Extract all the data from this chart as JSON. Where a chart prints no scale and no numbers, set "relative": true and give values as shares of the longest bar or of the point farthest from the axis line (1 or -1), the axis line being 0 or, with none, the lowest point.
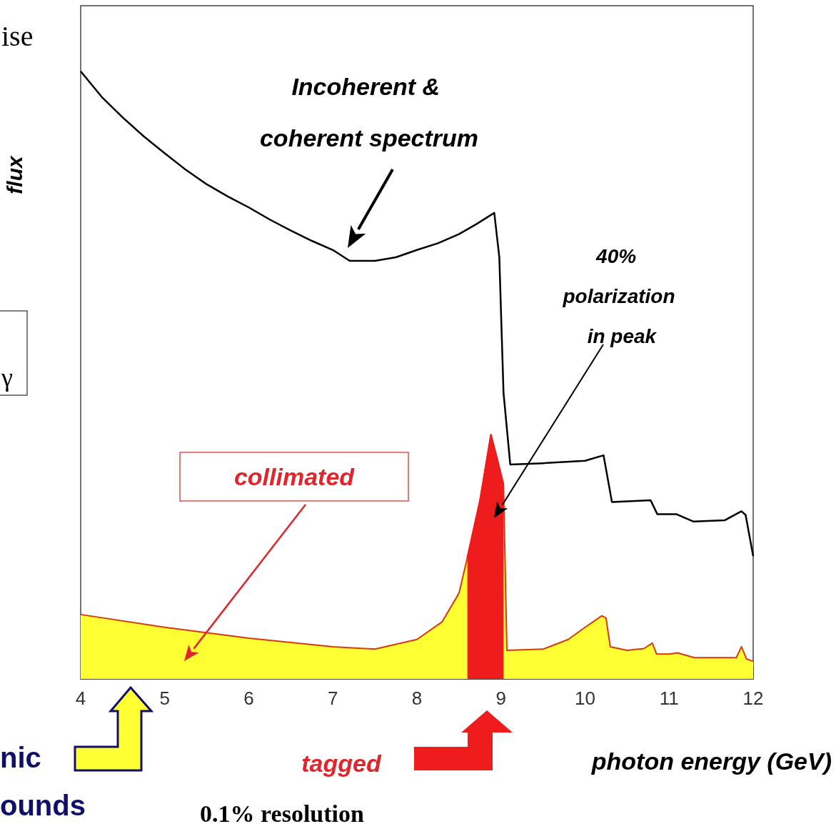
{
  "chart_data": {
    "type": "line",
    "relative": true,
    "xlabel": "photon energy (GeV)",
    "ylabel": "flux",
    "xlim": [
      4,
      12
    ],
    "xticks": [
      4,
      5,
      6,
      7,
      8,
      9,
      10,
      11,
      12
    ],
    "grid": false,
    "marker": "none",
    "series": [
      {
        "color": "#000000",
        "x": [
          4,
          4.25,
          4.5,
          4.75,
          5,
          5.25,
          5.5,
          5.75,
          6,
          6.25,
          6.5,
          6.75,
          7,
          7.2,
          7.5,
          7.75,
          8,
          8.25,
          8.5,
          8.7,
          8.92,
          8.98,
          9.03,
          9.11,
          9.5,
          10,
          10.22,
          10.32,
          10.78,
          10.86,
          11.09,
          11.29,
          11.66,
          11.86,
          11.91,
          12
        ],
        "values": [
          1,
          0.958,
          0.924,
          0.893,
          0.865,
          0.838,
          0.814,
          0.794,
          0.776,
          0.756,
          0.738,
          0.721,
          0.706,
          0.688,
          0.688,
          0.694,
          0.706,
          0.717,
          0.732,
          0.748,
          0.767,
          0.694,
          0.471,
          0.353,
          0.355,
          0.359,
          0.368,
          0.291,
          0.294,
          0.271,
          0.271,
          0.259,
          0.261,
          0.276,
          0.27,
          0.202
        ]
      },
      {
        "type": "area",
        "color": "#ffff33",
        "x": [
          4,
          5,
          6,
          7,
          7.5,
          8,
          8.3,
          8.5,
          8.6,
          8.75,
          8.88,
          8.95,
          9.03,
          9.07,
          9.5,
          9.8,
          10,
          10.2,
          10.25,
          10.3,
          10.5,
          10.7,
          10.8,
          10.85,
          11,
          11.1,
          11.3,
          11.8,
          11.86,
          11.92,
          12
        ],
        "values": [
          0.106,
          0.085,
          0.067,
          0.053,
          0.049,
          0.065,
          0.094,
          0.141,
          0.2,
          0.294,
          0.402,
          0.365,
          0.32,
          0.047,
          0.049,
          0.065,
          0.085,
          0.104,
          0.1,
          0.053,
          0.047,
          0.05,
          0.059,
          0.041,
          0.041,
          0.043,
          0.035,
          0.035,
          0.053,
          0.033,
          0.029
        ]
      },
      {
        "type": "area",
        "color": "#ee1c1c",
        "x": [
          8.6,
          8.75,
          8.88,
          8.95,
          9.03
        ],
        "values": [
          0.2,
          0.294,
          0.402,
          0.365,
          0.32
        ]
      }
    ],
    "annotations": [
      "Incoherent & coherent spectrum",
      "40% polarization in peak",
      "collimated",
      "tagged",
      "0.1% resolution",
      "ise",
      "γ",
      "nic",
      "ounds"
    ]
  }
}
